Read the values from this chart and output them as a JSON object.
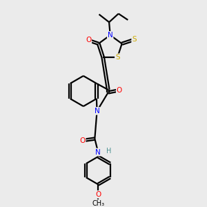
{
  "bg_color": "#ebebeb",
  "atom_colors": {
    "C": "#000000",
    "N": "#0000ff",
    "O": "#ff0000",
    "S": "#ccaa00",
    "H": "#4a9090"
  },
  "bond_color": "#000000",
  "bond_width": 1.6,
  "figsize": [
    3.0,
    3.0
  ],
  "dpi": 100
}
